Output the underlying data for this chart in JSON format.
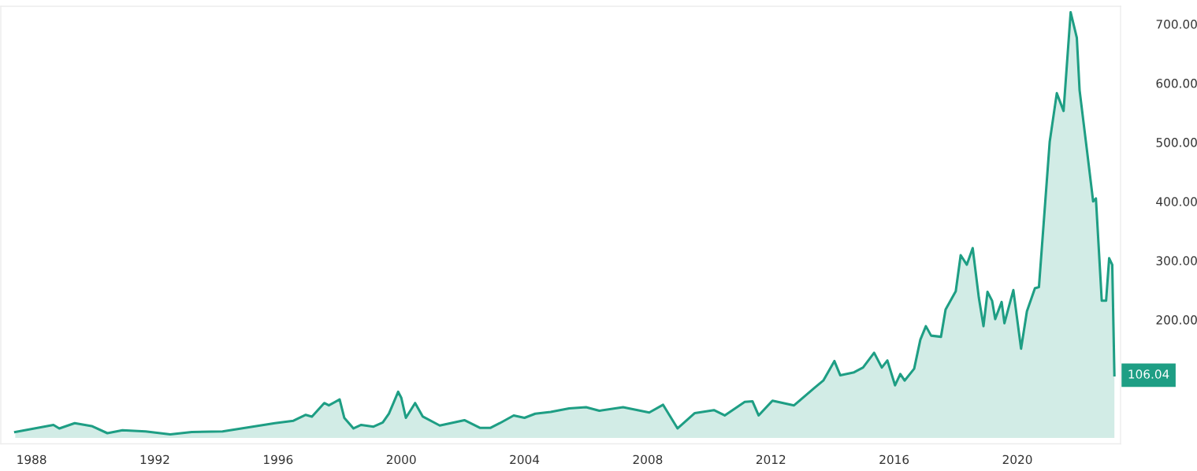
{
  "chart_data": {
    "type": "area",
    "color": "#1e9e84",
    "x": [
      1987.47,
      1988.71,
      1988.9,
      1989.4,
      1989.95,
      1990.46,
      1990.95,
      1991.7,
      1992.5,
      1993.2,
      1994.2,
      1995.05,
      1995.9,
      1996.5,
      1996.9,
      1997.1,
      1997.5,
      1997.65,
      1998.0,
      1998.15,
      1998.45,
      1998.7,
      1999.1,
      1999.4,
      1999.6,
      1999.9,
      2000.0,
      2000.15,
      2000.45,
      2000.7,
      2001.25,
      2002.05,
      2002.55,
      2002.9,
      2003.2,
      2003.65,
      2004.0,
      2004.35,
      2004.85,
      2005.45,
      2006.0,
      2006.43,
      2007.2,
      2008.05,
      2008.5,
      2008.97,
      2009.53,
      2010.15,
      2010.5,
      2011.15,
      2011.4,
      2011.6,
      2012.05,
      2012.75,
      2013.4,
      2013.7,
      2014.06,
      2014.25,
      2014.7,
      2014.99,
      2015.35,
      2015.6,
      2015.78,
      2016.03,
      2016.2,
      2016.34,
      2016.65,
      2016.85,
      2017.03,
      2017.2,
      2017.52,
      2017.67,
      2018.0,
      2018.16,
      2018.36,
      2018.55,
      2018.75,
      2018.9,
      2019.03,
      2019.18,
      2019.28,
      2019.49,
      2019.58,
      2019.87,
      2020.12,
      2020.31,
      2020.57,
      2020.7,
      2021.05,
      2021.28,
      2021.5,
      2021.73,
      2021.93,
      2022.02,
      2022.26,
      2022.46,
      2022.55,
      2022.74,
      2022.88,
      2022.98,
      2023.08,
      2023.15
    ],
    "values": [
      10,
      22,
      16,
      25,
      20,
      8,
      13,
      11,
      6,
      10,
      11,
      18,
      25,
      29,
      39,
      36,
      59,
      55,
      65,
      34,
      16,
      22,
      19,
      26,
      41,
      78,
      68,
      34,
      59,
      36,
      21,
      30,
      17,
      17,
      25,
      38,
      34,
      41,
      44,
      50,
      52,
      46,
      52,
      43,
      56,
      16,
      42,
      47,
      38,
      61,
      62,
      38,
      63,
      55,
      84,
      97,
      130,
      106,
      111,
      119,
      144,
      119,
      131,
      89,
      108,
      97,
      117,
      166,
      189,
      173,
      171,
      217,
      248,
      309,
      293,
      321,
      237,
      189,
      247,
      232,
      201,
      230,
      194,
      250,
      151,
      214,
      253,
      255,
      501,
      583,
      553,
      720,
      677,
      588,
      486,
      400,
      405,
      232,
      232,
      304,
      293,
      106.04
    ],
    "xlim": [
      1987.0,
      2023.35
    ],
    "xticks": [
      1988,
      1992,
      1996,
      2000,
      2004,
      2008,
      2012,
      2016,
      2020
    ],
    "ylim": [
      -10,
      730
    ],
    "yticks": [
      {
        "value": 200,
        "label": "200.00"
      },
      {
        "value": 300,
        "label": "300.00"
      },
      {
        "value": 400,
        "label": "400.00"
      },
      {
        "value": 500,
        "label": "500.00"
      },
      {
        "value": 600,
        "label": "600.00"
      },
      {
        "value": 700,
        "label": "700.00"
      }
    ],
    "annotations": [
      {
        "text": "106.04",
        "x": 2023.15,
        "y": 106.04
      }
    ],
    "grid": false,
    "legend": false
  }
}
